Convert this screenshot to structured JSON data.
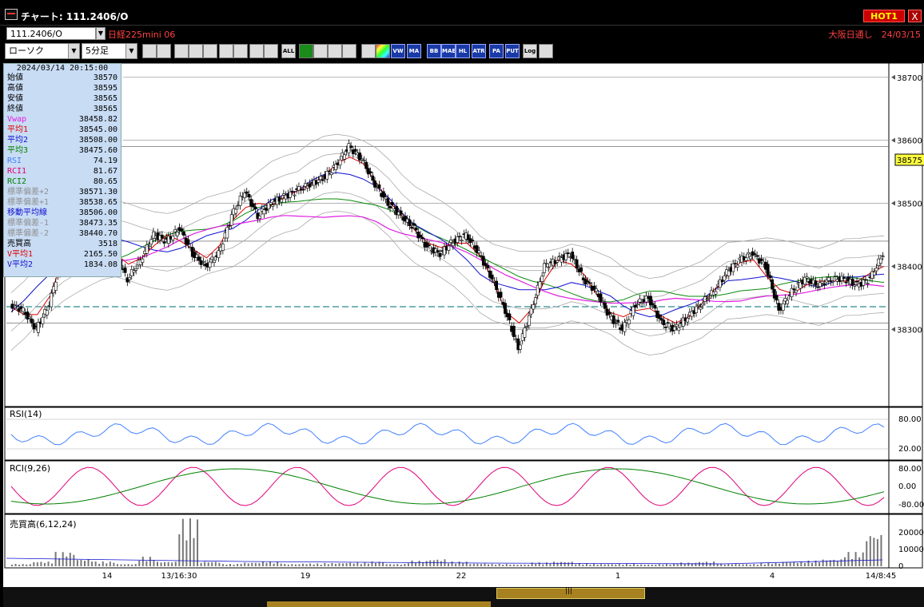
{
  "window": {
    "title": "チャート: 111.2406/O",
    "hot_label": "HOT1",
    "close_label": "X"
  },
  "info": {
    "symbol_code": "111.2406/O",
    "symbol_name": "日経225mini 06",
    "session": "大阪日通し　24/03/15"
  },
  "toolbar": {
    "chart_type": "ローソク",
    "period": "5分足",
    "buttons": [
      "zoom",
      "cursor",
      "pointer",
      "find",
      "bars",
      "ruler",
      "lock",
      "candle",
      "candle2",
      "ALL",
      "draw",
      "arrow",
      "cross",
      "edit",
      "tool",
      "color",
      "VWAP",
      "MA",
      "BB",
      "MAE",
      "HL",
      "ATR",
      "PARA",
      "PUT",
      "Log",
      "exit"
    ]
  },
  "data_panel": {
    "datetime": "2024/03/14 20:15:00",
    "rows": [
      {
        "label": "始値",
        "value": "38570",
        "color": "#000000"
      },
      {
        "label": "高値",
        "value": "38595",
        "color": "#000000"
      },
      {
        "label": "安値",
        "value": "38565",
        "color": "#000000"
      },
      {
        "label": "終値",
        "value": "38565",
        "color": "#000000"
      },
      {
        "label": "Vwap",
        "value": "38458.82",
        "color": "#e020e0"
      },
      {
        "label": "平均1",
        "value": "38545.00",
        "color": "#e00000"
      },
      {
        "label": "平均2",
        "value": "38508.00",
        "color": "#1010d0"
      },
      {
        "label": "平均3",
        "value": "38475.60",
        "color": "#008000"
      },
      {
        "label": "RSI",
        "value": "74.19",
        "color": "#4080ff"
      },
      {
        "label": "RCI1",
        "value": "81.67",
        "color": "#e0007a"
      },
      {
        "label": "RCI2",
        "value": "80.65",
        "color": "#008000"
      },
      {
        "label": "標準偏差+2",
        "value": "38571.30",
        "color": "#909090"
      },
      {
        "label": "標準偏差+1",
        "value": "38538.65",
        "color": "#909090"
      },
      {
        "label": "移動平均線",
        "value": "38506.00",
        "color": "#1010d0"
      },
      {
        "label": "標準偏差-1",
        "value": "38473.35",
        "color": "#909090"
      },
      {
        "label": "標準偏差-2",
        "value": "38440.70",
        "color": "#909090"
      },
      {
        "label": "売買高",
        "value": "3518",
        "color": "#000000"
      },
      {
        "label": "V平均1",
        "value": "2165.50",
        "color": "#e00000"
      },
      {
        "label": "V平均2",
        "value": "1834.08",
        "color": "#1010d0"
      }
    ]
  },
  "panels": {
    "rsi_title": "RSI(14)",
    "rci_title": "RCI(9,26)",
    "vol_title": "売買高(6,12,24)",
    "price_ticks": [
      "38700",
      "38600",
      "38500",
      "38400",
      "38300"
    ],
    "current_price": "38575",
    "rsi_ticks": [
      "80.00",
      "20.00"
    ],
    "rci_ticks": [
      "80.00",
      "0.00",
      "-80.00"
    ],
    "vol_ticks": [
      "20000",
      "10000",
      "0"
    ],
    "x_labels": [
      "14",
      "13/16:30",
      "19",
      "22",
      "1",
      "4",
      "14/8:45"
    ]
  },
  "chart_data": {
    "type": "line",
    "y_axis": {
      "ylim": [
        38180,
        38720
      ],
      "ticks": [
        38700,
        38600,
        38500,
        38400,
        38300
      ]
    },
    "price_path": [
      38340,
      38330,
      38300,
      38340,
      38420,
      38480,
      38510,
      38460,
      38420,
      38380,
      38410,
      38450,
      38440,
      38460,
      38420,
      38400,
      38420,
      38480,
      38520,
      38480,
      38500,
      38510,
      38520,
      38530,
      38540,
      38560,
      38590,
      38570,
      38530,
      38500,
      38480,
      38460,
      38430,
      38420,
      38440,
      38450,
      38420,
      38380,
      38330,
      38270,
      38330,
      38400,
      38410,
      38420,
      38380,
      38360,
      38320,
      38300,
      38340,
      38350,
      38310,
      38300,
      38320,
      38340,
      38360,
      38390,
      38410,
      38420,
      38400,
      38330,
      38360,
      38380,
      38370,
      38380,
      38380,
      38370,
      38380,
      38420
    ],
    "volume_spikes": [
      0.05,
      0.1,
      0.3,
      0.15,
      0.1,
      0.05,
      0.2,
      0.1,
      1.0,
      0.1,
      0.05,
      0.08,
      0.1,
      0.05,
      0.06,
      0.07,
      0.08,
      0.1,
      0.05,
      0.12,
      0.15,
      0.1,
      0.06,
      0.05,
      0.04,
      0.08,
      0.1,
      0.06,
      0.05,
      0.05,
      0.04,
      0.05,
      0.08,
      0.1,
      0.06,
      0.05,
      0.07,
      0.1,
      0.12,
      0.15,
      0.3,
      0.7
    ]
  },
  "scrollbar": {
    "thumb_label": "|||"
  }
}
